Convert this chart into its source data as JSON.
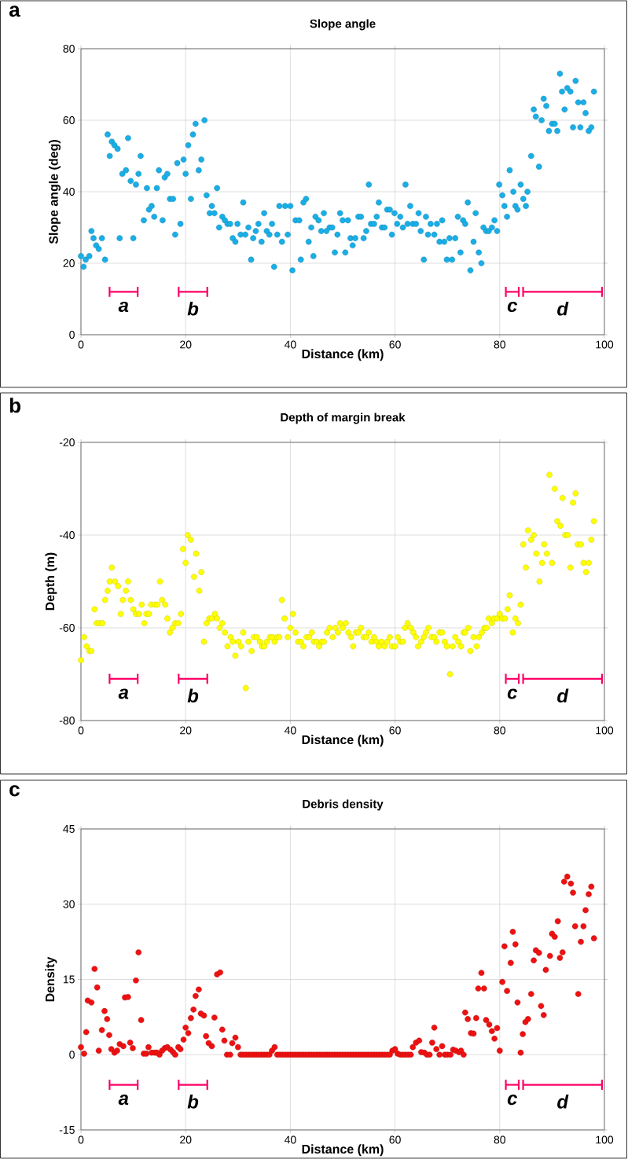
{
  "chart_data": [
    {
      "type": "scatter",
      "title": "Slope angle",
      "xlabel": "Distance (km)",
      "ylabel": "Slope angle (deg)",
      "annotations": [
        "a"
      ],
      "legend": "bottom",
      "grid": true,
      "xlim": [
        0,
        100
      ],
      "xticks": [
        0,
        20,
        40,
        60,
        80,
        100
      ],
      "ylim": [
        0,
        80
      ],
      "yticks": [
        0,
        20,
        40,
        60,
        80
      ],
      "series": [
        {
          "color": "#1aaee6",
          "marker": "circle",
          "x": [
            0,
            0.5,
            0.9,
            1.6,
            2,
            2.4,
            2.9,
            3.4,
            4,
            4.6,
            5.1,
            5.5,
            5.9,
            6.4,
            7,
            7.4,
            7.9,
            8.6,
            9,
            9.5,
            10,
            10.5,
            11,
            11.4,
            12,
            12.6,
            13,
            13.5,
            14,
            14.5,
            14.9,
            15.6,
            16,
            16.5,
            17,
            17.6,
            18,
            18.4,
            19,
            19.6,
            20,
            20.5,
            21,
            21.4,
            21.9,
            22.5,
            23,
            23.6,
            24,
            24.6,
            25,
            25.5,
            26,
            26.4,
            27,
            27.5,
            28,
            28.5,
            29,
            29.5,
            29.9,
            30.5,
            31,
            31.4,
            32,
            32.5,
            32.9,
            33.4,
            33.9,
            34.5,
            35,
            35.5,
            36,
            36.5,
            36.9,
            37.5,
            37.9,
            38.4,
            39,
            39.5,
            40,
            40.4,
            41,
            41.7,
            42,
            42.5,
            43,
            43.5,
            44,
            44.4,
            44.8,
            45.4,
            45.9,
            46.4,
            46.9,
            47.5,
            48,
            48.5,
            49,
            49.5,
            50,
            50.5,
            51,
            51.5,
            51.9,
            52.4,
            53,
            53.5,
            54,
            54.5,
            55,
            55.4,
            56,
            56.5,
            56.9,
            57.5,
            58,
            58.5,
            59,
            59.4,
            59.9,
            60.4,
            61,
            61.5,
            62,
            62.4,
            62.9,
            63.4,
            64,
            64.5,
            64.9,
            65.5,
            65.9,
            66.3,
            66.8,
            67.5,
            68,
            68.5,
            69,
            69.4,
            69.9,
            70.4,
            70.9,
            71.5,
            72,
            72.5,
            73,
            73.4,
            73.9,
            74.4,
            75,
            75.4,
            76,
            76.5,
            76.9,
            77.4,
            77.9,
            78.5,
            79,
            79.5,
            79.9,
            80.5,
            80.9,
            81.4,
            81.9,
            82.6,
            83,
            83.4,
            84,
            84.5,
            85,
            85.3,
            86,
            86.5,
            86.9,
            87.5,
            88,
            88.4,
            88.9,
            89.4,
            90,
            90.5,
            91,
            91.5,
            91.9,
            92.4,
            92.9,
            93.5,
            94,
            94.5,
            95,
            95.4,
            96,
            96.4,
            97,
            97.5,
            98
          ],
          "values": [
            22,
            19,
            21,
            22,
            29,
            27,
            25,
            24,
            27,
            21,
            56,
            50,
            54,
            53,
            52,
            27,
            45,
            46,
            55,
            43,
            27,
            42,
            45,
            50,
            32,
            41,
            35,
            36,
            33,
            41,
            46,
            32,
            44,
            45,
            38,
            38,
            28,
            48,
            31,
            49,
            45,
            53,
            38,
            56,
            59,
            46,
            49,
            60,
            39,
            34,
            36,
            34,
            41,
            30,
            33,
            32,
            31,
            31,
            27,
            26,
            31,
            28,
            37,
            28,
            30,
            21,
            27,
            29,
            31,
            26,
            34,
            29,
            28,
            31,
            19,
            28,
            36,
            26,
            36,
            28,
            36,
            18,
            32,
            32,
            21,
            37,
            38,
            26,
            30,
            22,
            33,
            32,
            29,
            34,
            29,
            30,
            30,
            23,
            28,
            34,
            32,
            23,
            32,
            27,
            25,
            27,
            33,
            33,
            27,
            29,
            42,
            31,
            31,
            33,
            37,
            30,
            30,
            35,
            35,
            28,
            34,
            31,
            33,
            30,
            42,
            31,
            36,
            31,
            31,
            34,
            29,
            21,
            33,
            28,
            31,
            28,
            31,
            26,
            32,
            26,
            21,
            27,
            21,
            27,
            33,
            23,
            32,
            31,
            37,
            18,
            26,
            34,
            23,
            20,
            30,
            29,
            29,
            30,
            32,
            29,
            42,
            39,
            36,
            33,
            46,
            40,
            36,
            35,
            42,
            38,
            36,
            40,
            50,
            63,
            61,
            47,
            60,
            66,
            64,
            57,
            59,
            59,
            57,
            73,
            68,
            63,
            69,
            68,
            58,
            71,
            65,
            58,
            65,
            62,
            57,
            58,
            68
          ]
        },
        {
          "type": "line",
          "name": "a",
          "color": "#ff0066",
          "x": [
            5.3,
            11
          ],
          "values": [
            12,
            12
          ]
        },
        {
          "type": "line",
          "name": "b",
          "color": "#ff0066",
          "x": [
            18.5,
            24.3
          ],
          "values": [
            12,
            12
          ]
        },
        {
          "type": "line",
          "name": "c",
          "color": "#ff0066",
          "x": [
            81,
            83.8
          ],
          "values": [
            12,
            12
          ]
        },
        {
          "type": "line",
          "name": "d",
          "color": "#ff0066",
          "x": [
            84.3,
            99.7
          ],
          "values": [
            12,
            12
          ]
        }
      ]
    },
    {
      "type": "scatter",
      "title": "Depth of margin break",
      "xlabel": "Distance (km)",
      "ylabel": "Depth (m)",
      "annotations": [
        "b"
      ],
      "legend": "bottom",
      "grid": true,
      "xlim": [
        0,
        100
      ],
      "xticks": [
        0,
        20,
        40,
        60,
        80,
        100
      ],
      "ylim": [
        -80,
        -20
      ],
      "yticks": [
        -80,
        -60,
        -40,
        -20
      ],
      "series": [
        {
          "color": "#ffff00",
          "marker": "circle",
          "x": [
            0,
            0.6,
            1.1,
            1.6,
            2,
            2.6,
            3,
            3.6,
            4.1,
            4.6,
            5.1,
            5.5,
            5.9,
            6.5,
            7.1,
            7.6,
            8,
            8.6,
            9,
            9.5,
            10,
            10.5,
            11.1,
            11.6,
            12.1,
            12.5,
            13,
            13.4,
            14.1,
            14.6,
            15.1,
            15.5,
            16.1,
            16.5,
            17,
            17.5,
            18,
            18.6,
            19.1,
            19.5,
            20,
            20.4,
            21,
            21.6,
            22,
            22.6,
            23,
            23.5,
            24,
            24.5,
            25,
            25.6,
            26,
            26.5,
            27,
            27.5,
            28,
            28.6,
            29,
            29.5,
            30.1,
            30.6,
            31,
            31.5,
            32,
            32.6,
            33,
            33.6,
            34.2,
            34.6,
            35,
            35.5,
            36.1,
            36.6,
            37,
            37.5,
            37.9,
            38.4,
            38.9,
            39.5,
            40,
            40.5,
            41,
            41.5,
            42,
            42.5,
            43.1,
            43.6,
            44.1,
            44.5,
            45,
            45.5,
            46,
            46.4,
            47,
            47.5,
            48.1,
            48.6,
            49.1,
            49.5,
            50,
            50.6,
            51.1,
            51.6,
            52,
            52.5,
            53,
            53.5,
            54,
            54.5,
            55,
            55.5,
            56,
            56.5,
            56.9,
            57.4,
            58,
            58.5,
            59,
            59.4,
            60,
            60.5,
            61,
            61.5,
            61.9,
            62.4,
            63,
            63.5,
            64,
            64.4,
            65,
            65.5,
            65.9,
            66.4,
            67,
            67.5,
            67.9,
            68.5,
            69,
            69.5,
            69.9,
            70.5,
            71,
            71.5,
            72.1,
            72.6,
            73.1,
            73.4,
            74,
            74.4,
            75,
            75.6,
            76,
            76.6,
            77.1,
            77.5,
            77.9,
            78.5,
            78.9,
            79.5,
            80,
            80.5,
            81,
            81.5,
            81.9,
            82.5,
            83,
            83.5,
            84,
            84.5,
            85,
            85.4,
            86,
            86.5,
            87,
            87.6,
            88.1,
            88.5,
            89,
            89.5,
            90,
            90.5,
            91,
            91.6,
            92,
            92.5,
            93,
            93.5,
            94,
            94.5,
            94.9,
            95.5,
            96,
            96.5,
            97,
            97.5,
            98
          ],
          "values": [
            -67,
            -62,
            -64,
            -65,
            -65,
            -56,
            -59,
            -59,
            -59,
            -54,
            -52,
            -50,
            -47,
            -50,
            -51,
            -57,
            -54,
            -52,
            -50,
            -54,
            -56,
            -57,
            -57,
            -55,
            -59,
            -57,
            -57,
            -55,
            -55,
            -55,
            -50,
            -54,
            -55,
            -58,
            -61,
            -60,
            -59,
            -59,
            -57,
            -43,
            -46,
            -40,
            -41,
            -49,
            -44,
            -52,
            -48,
            -63,
            -59,
            -58,
            -58,
            -57,
            -58,
            -60,
            -59,
            -61,
            -64,
            -62,
            -63,
            -66,
            -63,
            -64,
            -61,
            -73,
            -63,
            -65,
            -62,
            -62,
            -63,
            -64,
            -64,
            -63,
            -62,
            -62,
            -63,
            -62,
            -62,
            -54,
            -58,
            -62,
            -60,
            -57,
            -61,
            -63,
            -63,
            -64,
            -62,
            -62,
            -61,
            -63,
            -63,
            -64,
            -63,
            -63,
            -61,
            -60,
            -62,
            -60,
            -61,
            -59,
            -60,
            -59,
            -61,
            -62,
            -64,
            -61,
            -61,
            -60,
            -62,
            -62,
            -61,
            -63,
            -62,
            -63,
            -64,
            -63,
            -64,
            -63,
            -62,
            -64,
            -64,
            -62,
            -63,
            -63,
            -60,
            -59,
            -60,
            -61,
            -62,
            -64,
            -63,
            -62,
            -61,
            -60,
            -62,
            -62,
            -63,
            -61,
            -61,
            -63,
            -64,
            -70,
            -64,
            -62,
            -63,
            -64,
            -61,
            -61,
            -60,
            -65,
            -62,
            -64,
            -62,
            -61,
            -60,
            -60,
            -58,
            -59,
            -58,
            -58,
            -57,
            -58,
            -58,
            -56,
            -53,
            -61,
            -58,
            -59,
            -55,
            -42,
            -47,
            -39,
            -41,
            -40,
            -44,
            -50,
            -46,
            -42,
            -44,
            -27,
            -46,
            -30,
            -37,
            -38,
            -32,
            -40,
            -40,
            -47,
            -33,
            -31,
            -42,
            -42,
            -46,
            -48,
            -46,
            -41,
            -37
          ]
        },
        {
          "type": "line",
          "name": "a",
          "color": "#ff0066",
          "x": [
            5.3,
            11
          ],
          "values": [
            -71,
            -71
          ]
        },
        {
          "type": "line",
          "name": "b",
          "color": "#ff0066",
          "x": [
            18.5,
            24.3
          ],
          "values": [
            -71,
            -71
          ]
        },
        {
          "type": "line",
          "name": "c",
          "color": "#ff0066",
          "x": [
            81,
            83.8
          ],
          "values": [
            -71,
            -71
          ]
        },
        {
          "type": "line",
          "name": "d",
          "color": "#ff0066",
          "x": [
            84.3,
            99.7
          ],
          "values": [
            -71,
            -71
          ]
        }
      ]
    },
    {
      "type": "scatter",
      "title": "Debris density",
      "xlabel": "Distance (km)",
      "ylabel": "Density",
      "annotations": [
        "c"
      ],
      "legend": "bottom",
      "grid": true,
      "xlim": [
        0,
        100
      ],
      "xticks": [
        0,
        20,
        40,
        60,
        80,
        100
      ],
      "ylim": [
        -15,
        45
      ],
      "yticks": [
        -15,
        0,
        15,
        30,
        45
      ],
      "series": [
        {
          "color": "#ee1111",
          "marker": "circle",
          "x": [
            0,
            0.6,
            1,
            1.3,
            2,
            2.6,
            3.1,
            3.4,
            4,
            4.5,
            5,
            5.4,
            5.8,
            6.4,
            6.9,
            7.4,
            8.1,
            8.4,
            9,
            9.4,
            9.9,
            10.5,
            11,
            11.5,
            12,
            12.5,
            12.9,
            13.5,
            14.1,
            14.5,
            15,
            15.5,
            16,
            16.5,
            17.1,
            17.6,
            18,
            18.6,
            19,
            19.6,
            20,
            20.5,
            21,
            21.5,
            21.9,
            22.5,
            22.9,
            23.5,
            23.9,
            24.4,
            25,
            25.5,
            26,
            26.6,
            27,
            27.4,
            27.9,
            28.5,
            28.9,
            29.5,
            30,
            30.5,
            31,
            31.5,
            32,
            32.5,
            33,
            33.5,
            34,
            34.5,
            35,
            35.5,
            36,
            36.5,
            37,
            37.5,
            38,
            38.5,
            39,
            39.5,
            40,
            40.5,
            41,
            41.5,
            42,
            42.5,
            43,
            43.5,
            44,
            44.5,
            45,
            45.5,
            46,
            46.5,
            47,
            47.5,
            48,
            48.5,
            49,
            49.5,
            50,
            50.5,
            51,
            51.5,
            52,
            52.5,
            53,
            53.5,
            54,
            54.5,
            55,
            55.5,
            56,
            56.5,
            57,
            57.5,
            58,
            58.5,
            59,
            59.5,
            60,
            60.5,
            61,
            61.5,
            62,
            62.5,
            63,
            63.4,
            64,
            64.6,
            65,
            65.6,
            66.1,
            66.6,
            67.1,
            67.5,
            67.9,
            68.5,
            69,
            69.5,
            70,
            70.6,
            71.1,
            71.6,
            72.2,
            72.6,
            73.1,
            73.4,
            73.9,
            74.5,
            75,
            75.5,
            75.9,
            76.5,
            77,
            77.4,
            78,
            78.5,
            79,
            79.5,
            80,
            80.5,
            80.9,
            81.4,
            82.1,
            82.5,
            83,
            83.4,
            84,
            84.4,
            84.9,
            85.4,
            86,
            86.5,
            86.9,
            87.5,
            87.9,
            88.4,
            88.8,
            89.6,
            90,
            90.5,
            91.1,
            91.5,
            92,
            92.3,
            92.9,
            93.6,
            94,
            94.4,
            95,
            95.5,
            96,
            96.4,
            97,
            97.5,
            98
          ],
          "values": [
            1.5,
            0.2,
            4.5,
            10.8,
            10.4,
            17.1,
            13.4,
            0.8,
            4.9,
            8.7,
            7.1,
            3.9,
            1.1,
            0.4,
            0.8,
            2.1,
            1.7,
            11.4,
            11.5,
            2.4,
            1.3,
            14.8,
            20.4,
            6.9,
            0.2,
            0.2,
            1.5,
            0.4,
            0.4,
            0.4,
            0,
            0.8,
            1.3,
            1.5,
            1,
            0.5,
            0,
            1.5,
            1.1,
            3,
            5.4,
            4.3,
            7.3,
            9,
            11.7,
            13,
            8.2,
            7.8,
            3.7,
            2.3,
            1.7,
            7.4,
            16,
            16.4,
            5,
            2.8,
            0,
            0,
            2.3,
            3.4,
            1.5,
            0,
            0,
            0,
            0,
            0,
            0,
            0,
            0,
            0,
            0,
            0,
            0,
            0.8,
            1.5,
            0,
            0,
            0,
            0,
            0,
            0,
            0,
            0,
            0,
            0,
            0,
            0,
            0,
            0,
            0,
            0,
            0,
            0,
            0,
            0,
            0,
            0,
            0,
            0,
            0,
            0,
            0,
            0,
            0,
            0,
            0,
            0,
            0,
            0,
            0,
            0,
            0,
            0,
            0,
            0,
            0,
            0,
            0,
            0,
            0.8,
            1.1,
            0.2,
            0,
            0,
            0,
            0,
            0,
            1.5,
            2.4,
            2.8,
            0.5,
            0.4,
            0,
            0,
            2.4,
            5.4,
            1.1,
            0,
            1.7,
            0,
            0,
            0,
            1,
            0.8,
            0.5,
            0.8,
            0,
            8.4,
            7.1,
            4.3,
            4.2,
            7.3,
            13.2,
            16.3,
            13.2,
            6.9,
            6,
            4.7,
            3.2,
            5.3,
            0.8,
            14.5,
            21.6,
            12.7,
            18.3,
            24.5,
            22,
            10.4,
            0.4,
            4.1,
            6.5,
            7.1,
            12.1,
            18.8,
            20.8,
            20.3,
            9.7,
            7.9,
            16.9,
            19.7,
            24.1,
            23.5,
            26.6,
            19.3,
            20.4,
            34.5,
            35.5,
            34.1,
            32.3,
            25.6,
            12.1,
            22.5,
            25.6,
            28.8,
            32,
            33.5,
            23.2
          ]
        },
        {
          "type": "line",
          "name": "a",
          "color": "#ff0066",
          "x": [
            5.3,
            11
          ],
          "values": [
            -6,
            -6
          ]
        },
        {
          "type": "line",
          "name": "b",
          "color": "#ff0066",
          "x": [
            18.5,
            24.3
          ],
          "values": [
            -6,
            -6
          ]
        },
        {
          "type": "line",
          "name": "c",
          "color": "#ff0066",
          "x": [
            81,
            83.8
          ],
          "values": [
            -6,
            -6
          ]
        },
        {
          "type": "line",
          "name": "d",
          "color": "#ff0066",
          "x": [
            84.3,
            99.7
          ],
          "values": [
            -6,
            -6
          ]
        }
      ]
    }
  ]
}
